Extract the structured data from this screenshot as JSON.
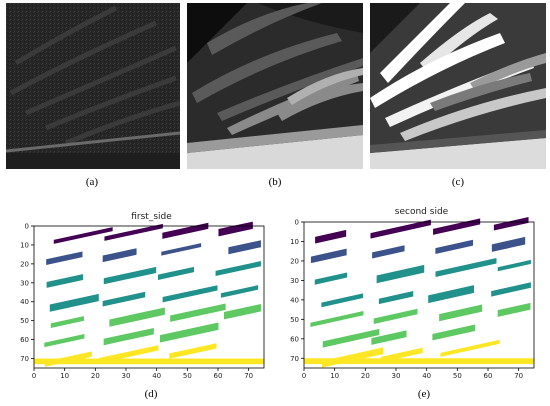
{
  "captions": {
    "a": "(a)",
    "b": "(b)",
    "c": "(c)",
    "d": "(d)",
    "e": "(e)"
  },
  "plots": [
    {
      "id": "d",
      "title": "first_side",
      "xticks": [
        "0",
        "10",
        "20",
        "30",
        "40",
        "50",
        "60",
        "70"
      ],
      "yticks": [
        "0",
        "10",
        "20",
        "30",
        "40",
        "50",
        "60",
        "70"
      ]
    },
    {
      "id": "e",
      "title": "second side",
      "xticks": [
        "0",
        "10",
        "20",
        "30",
        "40",
        "50",
        "60",
        "70"
      ],
      "yticks": [
        "0",
        "10",
        "20",
        "30",
        "40",
        "50",
        "60",
        "70"
      ]
    }
  ],
  "colors": {
    "viridis": [
      "#440154",
      "#3b528b",
      "#21918c",
      "#5ec962",
      "#fde725"
    ],
    "background": "#ffffff"
  }
}
